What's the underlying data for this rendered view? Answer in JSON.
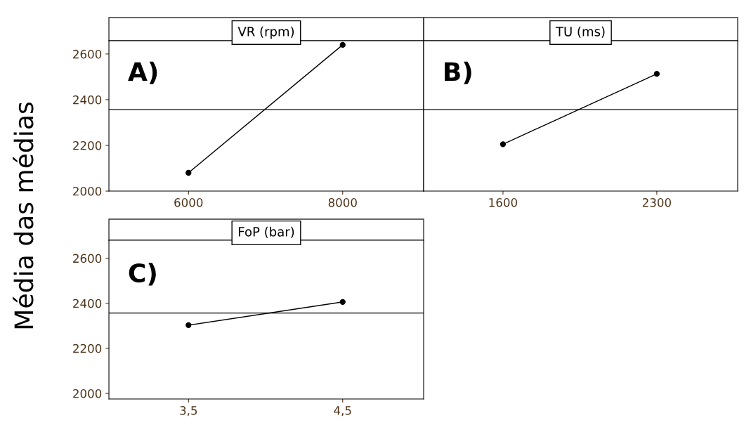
{
  "chart_data": [
    {
      "type": "line",
      "title": "VR (rpm)",
      "ylabel": "Média das médias",
      "x": [
        6000,
        8000
      ],
      "values": [
        2080,
        2640
      ],
      "color": "#000000",
      "marker": "circle",
      "line_style": "solid",
      "xlim": [
        4968,
        9050
      ],
      "xticks": [
        6000,
        8000
      ],
      "ylim": [
        2000,
        2658
      ],
      "yticks": [
        2000,
        2200,
        2400,
        2600
      ],
      "ref_lines": [
        {
          "axis": "y",
          "value": 2357,
          "color": "#555555"
        }
      ],
      "annotations": [
        "A)"
      ],
      "grid": false,
      "legend": false
    },
    {
      "type": "line",
      "title": "TU (ms)",
      "x": [
        1600,
        2300
      ],
      "values": [
        2205,
        2513
      ],
      "color": "#000000",
      "marker": "circle",
      "line_style": "solid",
      "xlim": [
        1239,
        2668
      ],
      "xticks": [
        1600,
        2300
      ],
      "ylim": [
        2000,
        2658
      ],
      "yticks": [
        2000,
        2200,
        2400,
        2600
      ],
      "tick_labels": "x",
      "ref_lines": [
        {
          "axis": "y",
          "value": 2357,
          "color": "#555555"
        }
      ],
      "annotations": [
        "B)"
      ],
      "grid": false,
      "legend": false
    },
    {
      "type": "line",
      "title": "FoP (bar)",
      "x": [
        3.5,
        4.5
      ],
      "values": [
        2303,
        2406
      ],
      "color": "#000000",
      "marker": "circle",
      "line_style": "solid",
      "xlim": [
        2.984,
        5.025
      ],
      "xticks": [
        {
          "value": 3.5,
          "label": "3,5"
        },
        {
          "value": 4.5,
          "label": "4,5"
        }
      ],
      "ylim": [
        1975,
        2680
      ],
      "yticks": [
        2000,
        2200,
        2400,
        2600
      ],
      "ref_lines": [
        {
          "axis": "y",
          "value": 2357,
          "color": "#555555"
        }
      ],
      "annotations": [
        "C)"
      ],
      "grid": false,
      "legend": false
    }
  ]
}
